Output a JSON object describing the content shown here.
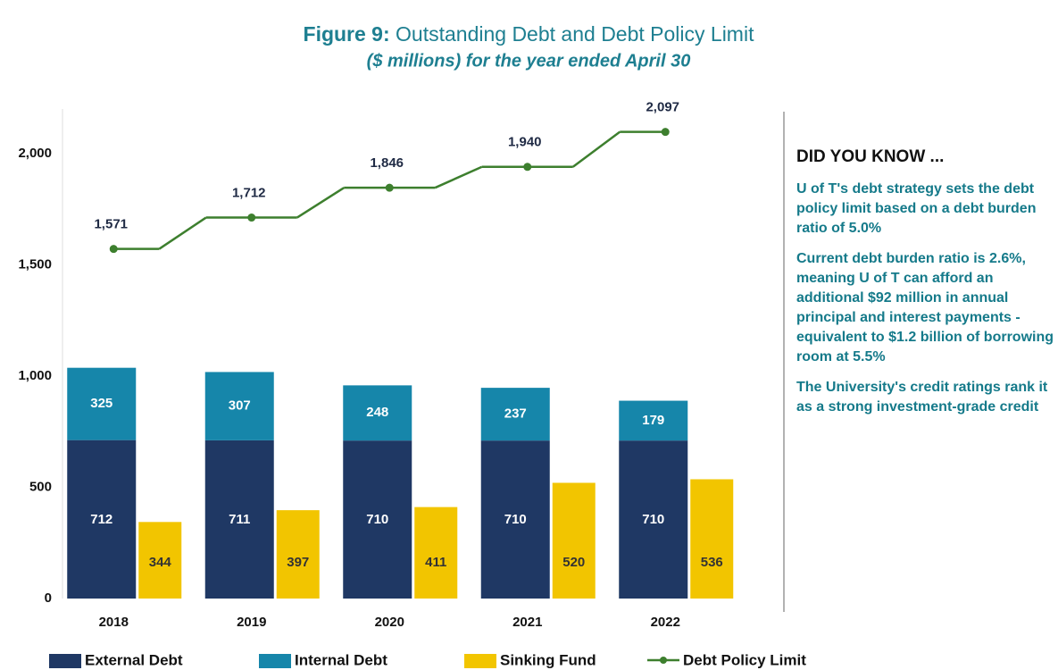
{
  "chart_data": {
    "type": "bar-line",
    "title_label": "Figure 9:",
    "title": "Outstanding Debt and Debt Policy Limit",
    "subtitle": "($ millions) for the year ended April 30",
    "categories": [
      "2018",
      "2019",
      "2020",
      "2021",
      "2022"
    ],
    "series": [
      {
        "name": "External Debt",
        "color": "#1f3864",
        "stack": "debt",
        "values": [
          712,
          711,
          710,
          710,
          710
        ]
      },
      {
        "name": "Internal Debt",
        "color": "#1686aa",
        "stack": "debt",
        "values": [
          325,
          307,
          248,
          237,
          179
        ]
      },
      {
        "name": "Sinking Fund",
        "color": "#f2c500",
        "stack": "fund",
        "values": [
          344,
          397,
          411,
          520,
          536
        ]
      },
      {
        "name": "Debt Policy Limit",
        "color": "#3d7f2e",
        "kind": "line",
        "values": [
          1571,
          1712,
          1846,
          1940,
          2097
        ],
        "value_labels": [
          "1,571",
          "1,712",
          "1,846",
          "1,940",
          "2,097"
        ]
      }
    ],
    "ylim": [
      0,
      2200
    ],
    "yticks": [
      0,
      500,
      {
        "value": 1000,
        "label": "1,000"
      },
      {
        "value": 1500,
        "label": "1,500"
      },
      {
        "value": 2000,
        "label": "2,000"
      }
    ],
    "legend": "bottom"
  },
  "sidebar": {
    "heading": "DID YOU KNOW ...",
    "paragraphs": [
      "U of T's debt strategy sets the debt policy limit based on a debt burden ratio of 5.0%",
      "Current debt burden ratio is 2.6%, meaning U of T can afford an additional $92 million in annual principal and interest payments - equivalent to $1.2 billion of borrowing room at 5.5%",
      "The University's credit ratings rank it as a strong investment-grade credit"
    ]
  }
}
